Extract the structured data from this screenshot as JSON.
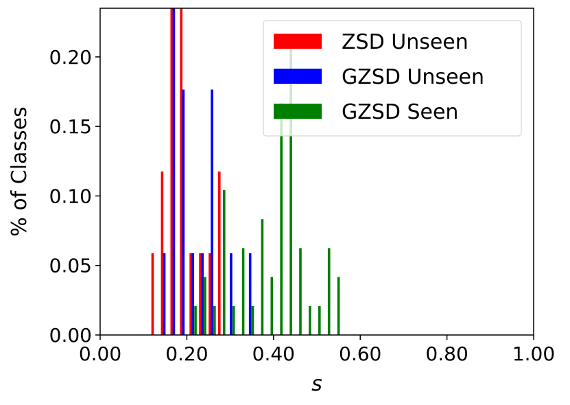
{
  "chart_data": {
    "type": "bar",
    "title": "",
    "xlabel": "s",
    "ylabel": "% of Classes",
    "xlim": [
      0,
      1
    ],
    "ylim": [
      0,
      0.235
    ],
    "x_ticks": [
      "0.00",
      "0.20",
      "0.40",
      "0.60",
      "0.80",
      "1.00"
    ],
    "x_tick_values": [
      0,
      0.2,
      0.4,
      0.6,
      0.8,
      1.0
    ],
    "y_ticks": [
      "0.00",
      "0.05",
      "0.10",
      "0.15",
      "0.20"
    ],
    "y_tick_values": [
      0,
      0.05,
      0.1,
      0.15,
      0.2
    ],
    "grid": false,
    "legend_position": "top-right",
    "series": [
      {
        "name": "ZSD Unseen",
        "color": "#ff0000",
        "points": [
          {
            "x": 0.121,
            "y": 0.0588
          },
          {
            "x": 0.143,
            "y": 0.1176
          },
          {
            "x": 0.165,
            "y": 0.2353
          },
          {
            "x": 0.187,
            "y": 0.2353
          },
          {
            "x": 0.209,
            "y": 0.0588
          },
          {
            "x": 0.231,
            "y": 0.0588
          },
          {
            "x": 0.253,
            "y": 0.0588
          },
          {
            "x": 0.275,
            "y": 0.1176
          }
        ]
      },
      {
        "name": "GZSD Unseen",
        "color": "#0000ff",
        "points": [
          {
            "x": 0.148,
            "y": 0.0588
          },
          {
            "x": 0.17,
            "y": 0.2353
          },
          {
            "x": 0.192,
            "y": 0.1765
          },
          {
            "x": 0.214,
            "y": 0.0588
          },
          {
            "x": 0.236,
            "y": 0.0588
          },
          {
            "x": 0.258,
            "y": 0.1765
          },
          {
            "x": 0.302,
            "y": 0.0588
          },
          {
            "x": 0.346,
            "y": 0.0588
          }
        ]
      },
      {
        "name": "GZSD Seen",
        "color": "#008000",
        "points": [
          {
            "x": 0.22,
            "y": 0.0208
          },
          {
            "x": 0.242,
            "y": 0.0417
          },
          {
            "x": 0.264,
            "y": 0.0208
          },
          {
            "x": 0.286,
            "y": 0.1042
          },
          {
            "x": 0.308,
            "y": 0.0208
          },
          {
            "x": 0.33,
            "y": 0.0625
          },
          {
            "x": 0.352,
            "y": 0.0208
          },
          {
            "x": 0.374,
            "y": 0.0833
          },
          {
            "x": 0.396,
            "y": 0.0417
          },
          {
            "x": 0.418,
            "y": 0.1667
          },
          {
            "x": 0.44,
            "y": 0.2083
          },
          {
            "x": 0.462,
            "y": 0.0625
          },
          {
            "x": 0.484,
            "y": 0.0208
          },
          {
            "x": 0.506,
            "y": 0.0208
          },
          {
            "x": 0.528,
            "y": 0.0625
          },
          {
            "x": 0.55,
            "y": 0.0417
          }
        ]
      }
    ]
  }
}
